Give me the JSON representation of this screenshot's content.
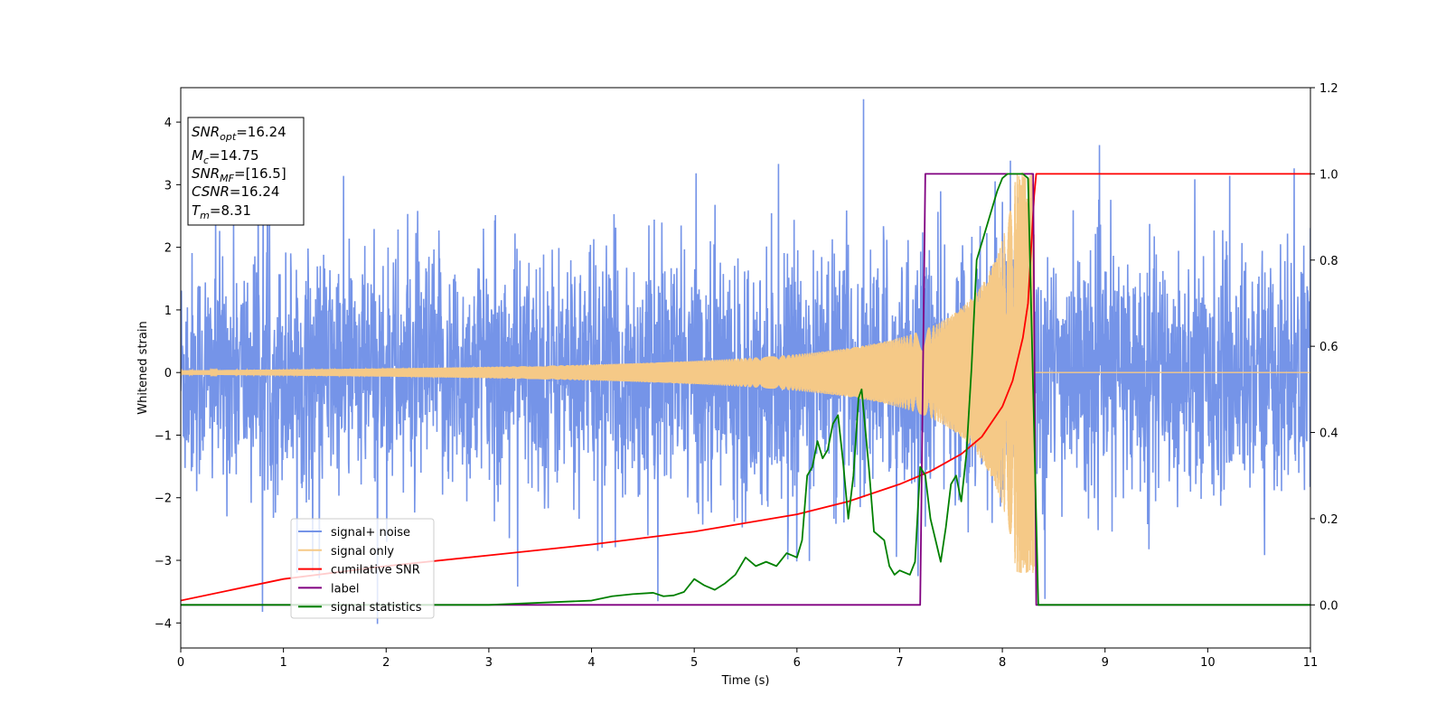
{
  "chart_data": {
    "type": "line",
    "xlabel": "Time (s)",
    "ylabel": "Whitened strain",
    "xlim": [
      0,
      11
    ],
    "ylim_left": [
      -4.4,
      4.55
    ],
    "ylim_right": [
      -0.1,
      1.2
    ],
    "x_ticks": [
      "0",
      "1",
      "2",
      "3",
      "4",
      "5",
      "6",
      "7",
      "8",
      "9",
      "10",
      "11"
    ],
    "y_ticks_left": [
      "−4",
      "−3",
      "−2",
      "−1",
      "0",
      "1",
      "2",
      "3",
      "4"
    ],
    "y_ticks_right": [
      "0.0",
      "0.2",
      "0.4",
      "0.6",
      "0.8",
      "1.0",
      "1.2"
    ],
    "grid": false,
    "legend_position": "lower-left",
    "annotation_box": {
      "position": "top-left",
      "lines": [
        {
          "label": "SNR",
          "sub": "opt",
          "value": "=16.24"
        },
        {
          "label": "M",
          "sub": "c",
          "value": "=14.75"
        },
        {
          "label": "SNR",
          "sub": "MF",
          "value": "=[16.5]"
        },
        {
          "label": "CSNR",
          "sub": "",
          "value": "=16.24"
        },
        {
          "label": "T",
          "sub": "m",
          "value": "=8.31"
        }
      ]
    },
    "series": [
      {
        "name": "signal+ noise",
        "color": "#7594e8",
        "axis": "left",
        "kind": "noise",
        "noise_sigma": 0.95,
        "x_range": [
          0,
          11
        ]
      },
      {
        "name": "signal only",
        "color": "#f5c987",
        "axis": "left",
        "kind": "chirp",
        "merger_time": 8.31,
        "x_range": [
          0,
          11
        ]
      },
      {
        "name": "cumilative SNR",
        "color": "#ff0000",
        "axis": "right",
        "x": [
          0,
          1,
          2,
          3,
          4,
          5,
          6,
          6.5,
          7,
          7.3,
          7.6,
          7.8,
          8.0,
          8.1,
          8.2,
          8.25,
          8.31,
          8.33,
          11
        ],
        "y": [
          0.01,
          0.06,
          0.09,
          0.115,
          0.14,
          0.17,
          0.21,
          0.24,
          0.28,
          0.31,
          0.35,
          0.39,
          0.46,
          0.52,
          0.62,
          0.7,
          0.95,
          1.0,
          1.0
        ]
      },
      {
        "name": "label",
        "color": "#800080",
        "axis": "right",
        "x": [
          0,
          7.2,
          7.25,
          8.3,
          8.33,
          11
        ],
        "y": [
          0,
          0,
          1,
          1,
          0,
          0
        ]
      },
      {
        "name": "signal statistics",
        "color": "#008000",
        "axis": "right",
        "x": [
          0,
          3,
          4,
          4.1,
          4.2,
          4.4,
          4.6,
          4.7,
          4.8,
          4.9,
          5.0,
          5.1,
          5.2,
          5.3,
          5.4,
          5.5,
          5.6,
          5.7,
          5.8,
          5.9,
          6.0,
          6.05,
          6.1,
          6.15,
          6.2,
          6.25,
          6.3,
          6.35,
          6.4,
          6.45,
          6.5,
          6.55,
          6.6,
          6.63,
          6.7,
          6.75,
          6.8,
          6.85,
          6.9,
          6.95,
          7.0,
          7.1,
          7.15,
          7.2,
          7.25,
          7.3,
          7.35,
          7.4,
          7.45,
          7.5,
          7.55,
          7.6,
          7.65,
          7.7,
          7.75,
          7.8,
          7.85,
          7.9,
          7.95,
          8.0,
          8.05,
          8.1,
          8.15,
          8.2,
          8.25,
          8.3,
          8.35,
          8.4,
          11
        ],
        "y": [
          0,
          0,
          0.01,
          0.015,
          0.02,
          0.025,
          0.028,
          0.02,
          0.022,
          0.03,
          0.06,
          0.045,
          0.035,
          0.05,
          0.07,
          0.11,
          0.09,
          0.1,
          0.09,
          0.12,
          0.11,
          0.15,
          0.3,
          0.32,
          0.38,
          0.34,
          0.36,
          0.42,
          0.44,
          0.33,
          0.2,
          0.3,
          0.48,
          0.5,
          0.32,
          0.17,
          0.16,
          0.15,
          0.09,
          0.07,
          0.08,
          0.07,
          0.1,
          0.32,
          0.3,
          0.2,
          0.15,
          0.1,
          0.18,
          0.28,
          0.3,
          0.24,
          0.35,
          0.55,
          0.8,
          0.84,
          0.88,
          0.92,
          0.96,
          0.99,
          1.0,
          1.0,
          1.0,
          1.0,
          0.99,
          0.5,
          0.0,
          0.0,
          0.0
        ]
      }
    ]
  }
}
